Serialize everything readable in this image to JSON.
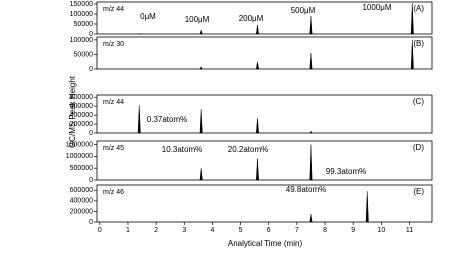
{
  "xlabel": "Analytical Time (min)",
  "ylabel": "GC/MS Peak Height",
  "chart_data": [
    {
      "type": "stem",
      "title": "m/z 44",
      "label": "(A)",
      "annotations": [
        "0μM",
        "100μM",
        "200μM",
        "500μM",
        "1000μM"
      ],
      "series": [
        {
          "x": [
            1.4,
            3.6,
            5.6,
            7.5,
            11.1
          ],
          "values": [
            1000,
            20000,
            45000,
            90000,
            155000
          ],
          "color": "#000000"
        }
      ],
      "xlim": [
        -0.1,
        11.8
      ],
      "ylim": [
        0,
        160000
      ],
      "yticks": [
        0,
        50000,
        100000,
        150000
      ]
    },
    {
      "type": "stem",
      "title": "m/z 30",
      "label": "(B)",
      "annotations": [],
      "series": [
        {
          "x": [
            3.6,
            5.6,
            7.5,
            11.1
          ],
          "values": [
            8000,
            25000,
            55000,
            100000
          ],
          "color": "#000000"
        }
      ],
      "xlim": [
        -0.1,
        11.8
      ],
      "ylim": [
        0,
        110000
      ],
      "yticks": [
        0,
        50000,
        100000
      ]
    },
    {
      "type": "stem",
      "title": "m/z 44",
      "label": "(C)",
      "annotations": [
        "0.37atom%"
      ],
      "series": [
        {
          "x": [
            1.4,
            3.6,
            5.6,
            7.5
          ],
          "values": [
            620000,
            530000,
            330000,
            40000
          ],
          "color": "#000000"
        }
      ],
      "xlim": [
        -0.1,
        11.8
      ],
      "ylim": [
        0,
        850000
      ],
      "yticks": [
        0,
        200000,
        400000,
        600000,
        800000
      ]
    },
    {
      "type": "stem",
      "title": "m/z 45",
      "label": "(D)",
      "annotations": [
        "10.3atom%",
        "20.2atom%",
        "99.3atom%"
      ],
      "series": [
        {
          "x": [
            3.6,
            5.6,
            7.5
          ],
          "values": [
            500000,
            900000,
            1500000
          ],
          "color": "#000000"
        }
      ],
      "xlim": [
        -0.1,
        11.8
      ],
      "ylim": [
        0,
        1650000
      ],
      "yticks": [
        0,
        500000,
        1000000,
        1500000
      ]
    },
    {
      "type": "stem",
      "title": "m/z 46",
      "label": "(E)",
      "annotations": [
        "49.8atom%"
      ],
      "series": [
        {
          "x": [
            7.5,
            9.5
          ],
          "values": [
            150000,
            580000
          ],
          "color": "#000000"
        }
      ],
      "xlim": [
        -0.1,
        11.8
      ],
      "ylim": [
        0,
        700000
      ],
      "yticks": [
        0,
        200000,
        400000,
        600000
      ],
      "xticks": [
        0,
        1,
        2,
        3,
        4,
        5,
        6,
        7,
        8,
        9,
        10,
        11
      ]
    }
  ]
}
